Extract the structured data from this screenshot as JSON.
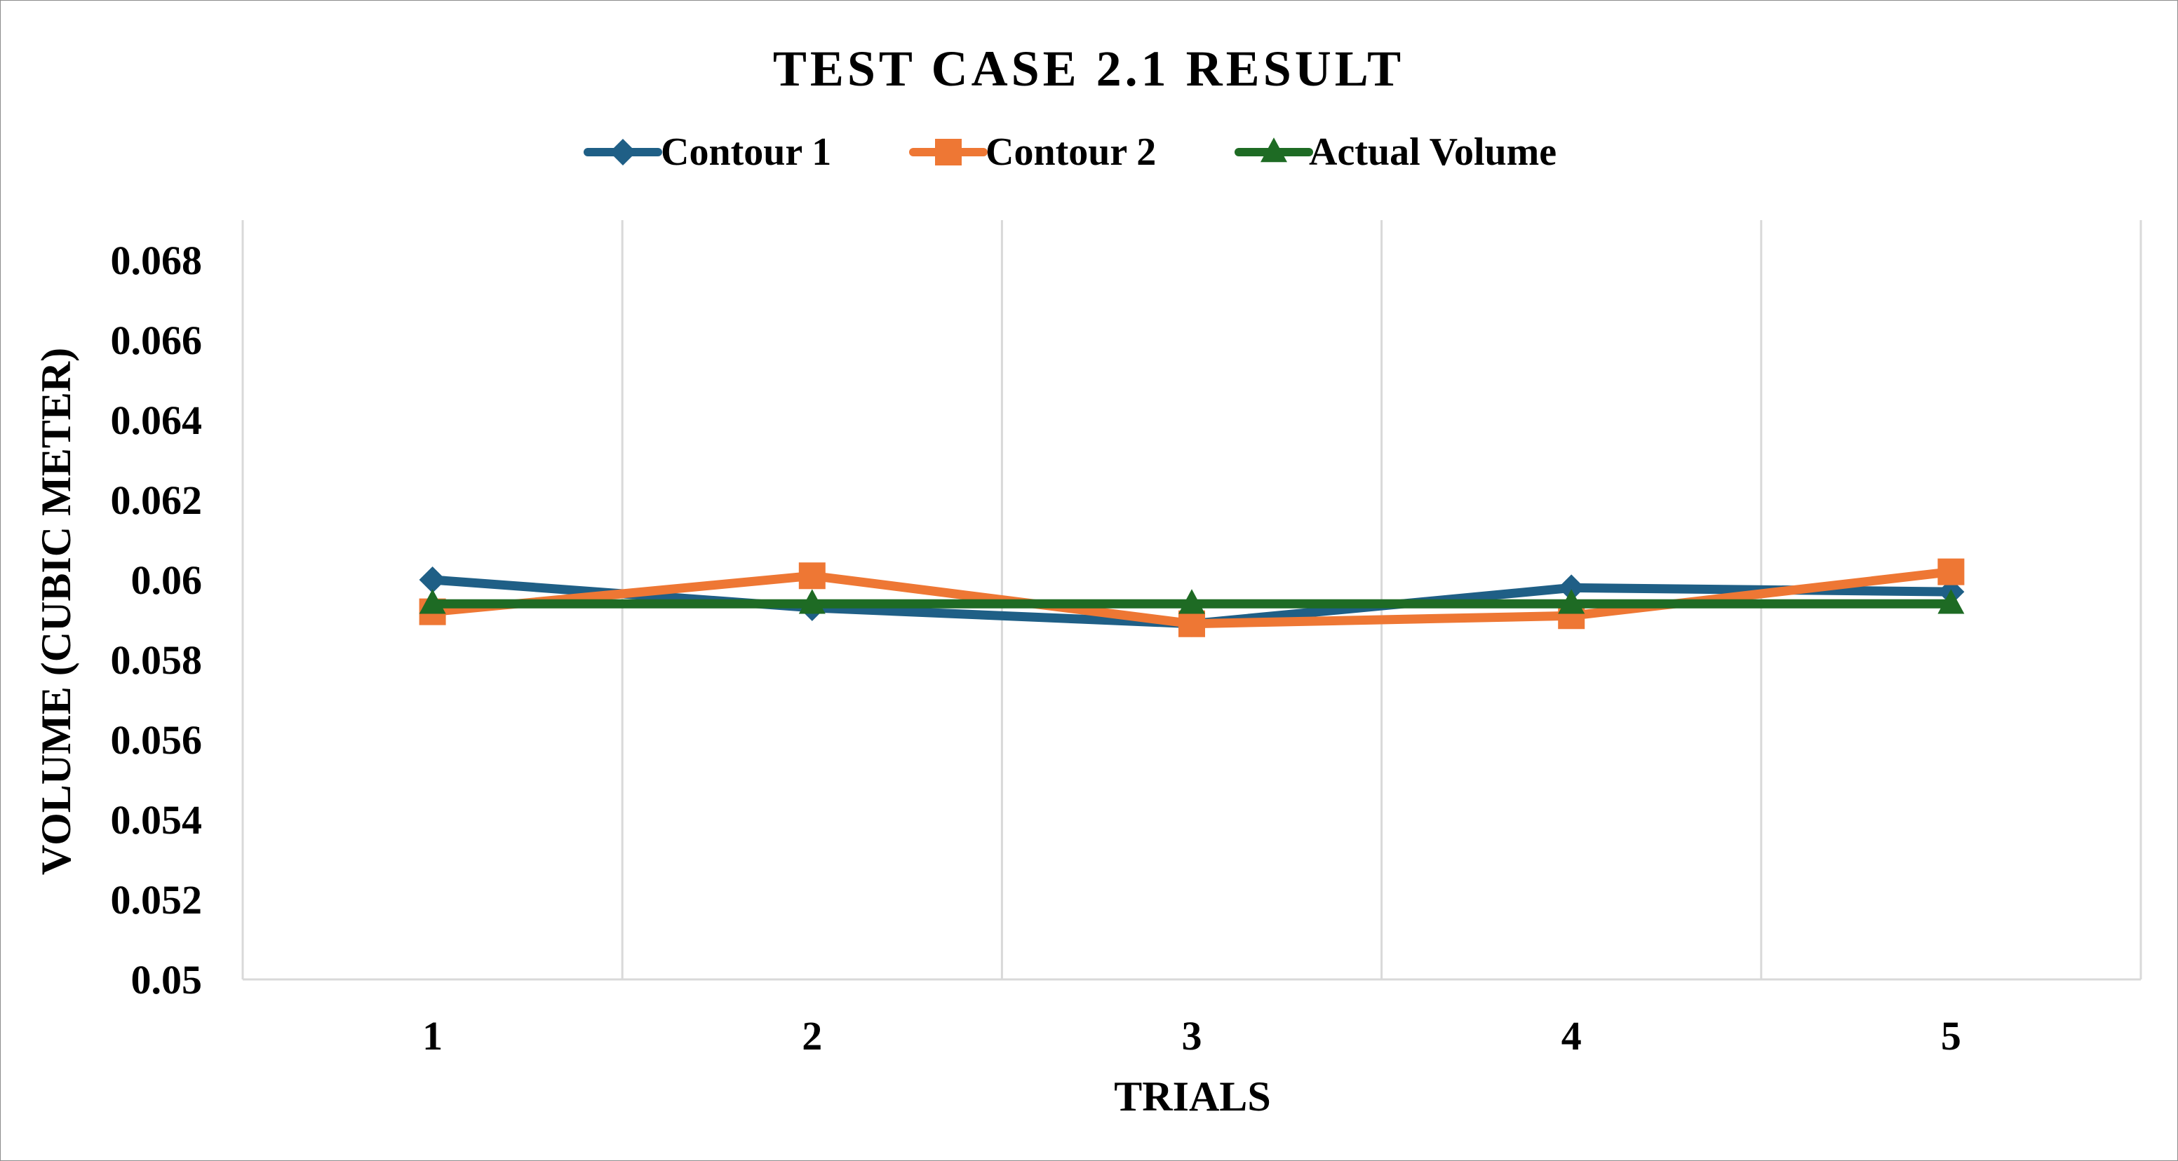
{
  "chart_data": {
    "type": "line",
    "title": "TEST CASE 2.1 RESULT",
    "xlabel": "TRIALS",
    "ylabel": "VOLUME (CUBIC METER)",
    "categories": [
      "1",
      "2",
      "3",
      "4",
      "5"
    ],
    "y_ticks": [
      "0.05",
      "0.052",
      "0.054",
      "0.056",
      "0.058",
      "0.06",
      "0.062",
      "0.064",
      "0.066",
      "0.068"
    ],
    "ylim": [
      0.05,
      0.069
    ],
    "grid": "vertical",
    "legend_position": "top",
    "series": [
      {
        "name": "Contour 1",
        "color": "#1f5f86",
        "marker": "diamond",
        "values": [
          0.06,
          0.0593,
          0.0589,
          0.0598,
          0.0597
        ]
      },
      {
        "name": "Contour 2",
        "color": "#ee7734",
        "marker": "square",
        "values": [
          0.0592,
          0.0601,
          0.0589,
          0.0591,
          0.0602
        ]
      },
      {
        "name": "Actual Volume",
        "color": "#1e6b24",
        "marker": "triangle",
        "values": [
          0.0594,
          0.0594,
          0.0594,
          0.0594,
          0.0594
        ]
      }
    ]
  }
}
